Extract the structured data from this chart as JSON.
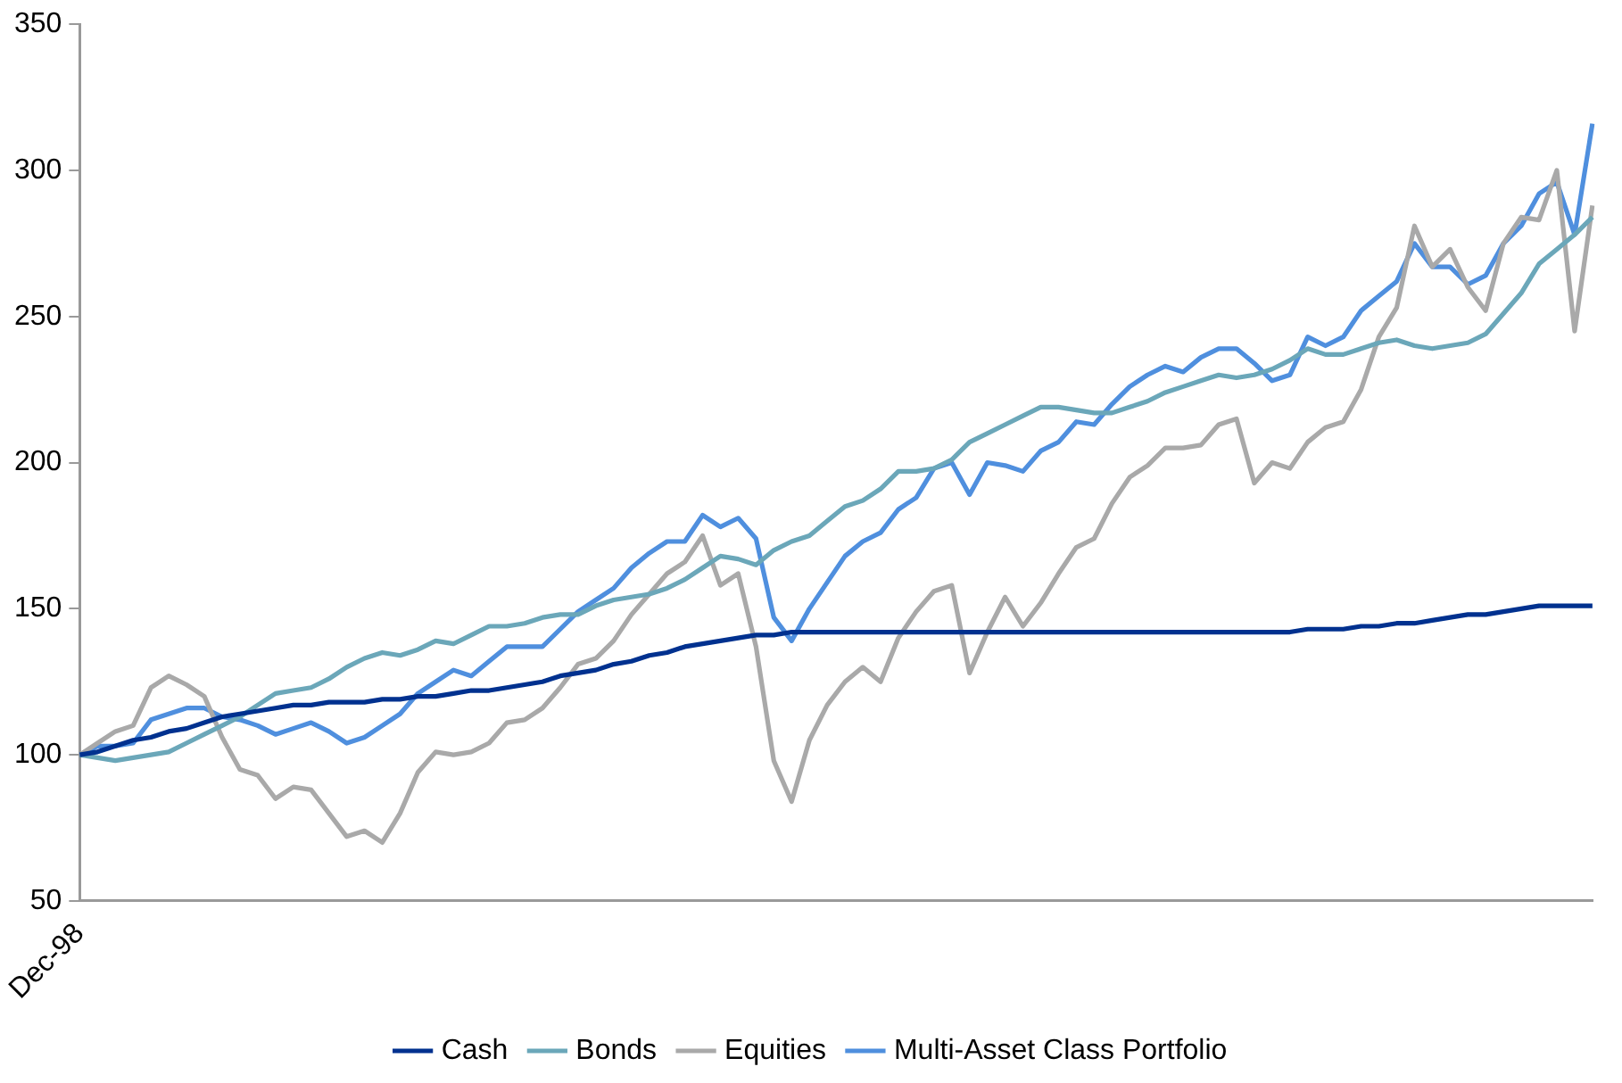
{
  "chart_data": {
    "type": "line",
    "categories": [
      "Dec-98",
      null,
      null,
      null,
      null,
      null,
      null,
      null,
      null,
      null,
      null,
      null,
      null,
      null,
      null,
      null,
      null,
      null,
      null,
      null,
      null,
      null,
      null,
      null,
      null,
      null,
      null,
      null,
      null,
      null,
      null,
      null,
      null,
      null,
      null,
      null,
      null,
      null,
      null,
      null,
      null,
      null,
      null,
      null,
      null,
      null,
      null,
      null,
      null,
      null,
      null,
      null,
      null,
      null,
      null,
      null,
      null,
      null,
      null,
      null,
      null,
      null,
      null,
      null,
      null,
      null,
      null,
      null,
      null,
      null,
      null,
      null,
      null,
      null,
      null,
      null,
      null,
      null,
      null,
      null,
      null,
      null,
      null,
      null,
      null,
      null
    ],
    "series": [
      {
        "name": "Cash",
        "color": "#00318f",
        "values": [
          100,
          101,
          103,
          105,
          106,
          108,
          109,
          111,
          113,
          114,
          115,
          116,
          117,
          117,
          118,
          118,
          118,
          119,
          119,
          120,
          120,
          121,
          122,
          122,
          123,
          124,
          125,
          127,
          128,
          129,
          131,
          132,
          134,
          135,
          137,
          138,
          139,
          140,
          141,
          141,
          142,
          142,
          142,
          142,
          142,
          142,
          142,
          142,
          142,
          142,
          142,
          142,
          142,
          142,
          142,
          142,
          142,
          142,
          142,
          142,
          142,
          142,
          142,
          142,
          142,
          142,
          142,
          142,
          142,
          143,
          143,
          143,
          144,
          144,
          145,
          145,
          146,
          147,
          148,
          148,
          149,
          150,
          151,
          151,
          151,
          151
        ]
      },
      {
        "name": "Bonds",
        "color": "#6ba7b9",
        "values": [
          100,
          99,
          98,
          99,
          100,
          101,
          104,
          107,
          110,
          113,
          117,
          121,
          122,
          123,
          126,
          130,
          133,
          135,
          134,
          136,
          139,
          138,
          141,
          144,
          144,
          145,
          147,
          148,
          148,
          151,
          153,
          154,
          155,
          157,
          160,
          164,
          168,
          167,
          165,
          170,
          173,
          175,
          180,
          185,
          187,
          191,
          197,
          197,
          198,
          201,
          207,
          210,
          213,
          216,
          219,
          219,
          218,
          217,
          217,
          219,
          221,
          224,
          226,
          228,
          230,
          229,
          230,
          232,
          235,
          239,
          237,
          237,
          239,
          241,
          242,
          240,
          239,
          240,
          241,
          244,
          251,
          258,
          268,
          273,
          278,
          284
        ]
      },
      {
        "name": "Equities",
        "color": "#a9a9a9",
        "values": [
          100,
          104,
          108,
          110,
          123,
          127,
          124,
          120,
          106,
          95,
          93,
          85,
          89,
          88,
          80,
          72,
          74,
          70,
          80,
          94,
          101,
          100,
          101,
          104,
          111,
          112,
          116,
          123,
          131,
          133,
          139,
          148,
          155,
          162,
          166,
          175,
          158,
          162,
          137,
          98,
          84,
          105,
          117,
          125,
          130,
          125,
          140,
          149,
          156,
          158,
          128,
          142,
          154,
          144,
          152,
          162,
          171,
          174,
          186,
          195,
          199,
          205,
          205,
          206,
          213,
          215,
          193,
          200,
          198,
          207,
          212,
          214,
          225,
          243,
          253,
          281,
          267,
          273,
          260,
          252,
          275,
          284,
          283,
          300,
          245,
          288
        ]
      },
      {
        "name": "Multi-Asset Class Portfolio",
        "color": "#4f8fde",
        "values": [
          100,
          103,
          103,
          104,
          112,
          114,
          116,
          116,
          113,
          112,
          110,
          107,
          109,
          111,
          108,
          104,
          106,
          110,
          114,
          121,
          125,
          129,
          127,
          132,
          137,
          137,
          137,
          143,
          149,
          153,
          157,
          164,
          169,
          173,
          173,
          182,
          178,
          181,
          174,
          147,
          139,
          150,
          159,
          168,
          173,
          176,
          184,
          188,
          198,
          200,
          189,
          200,
          199,
          197,
          204,
          207,
          214,
          213,
          220,
          226,
          230,
          233,
          231,
          236,
          239,
          239,
          234,
          228,
          230,
          243,
          240,
          243,
          252,
          257,
          262,
          275,
          267,
          267,
          261,
          264,
          275,
          281,
          292,
          296,
          278,
          316
        ]
      }
    ],
    "ylim": [
      50,
      350
    ],
    "yticks": [
      50,
      100,
      150,
      200,
      250,
      300,
      350
    ],
    "grid": false,
    "legend": "bottom",
    "marker": "none",
    "line_style": "solid"
  }
}
